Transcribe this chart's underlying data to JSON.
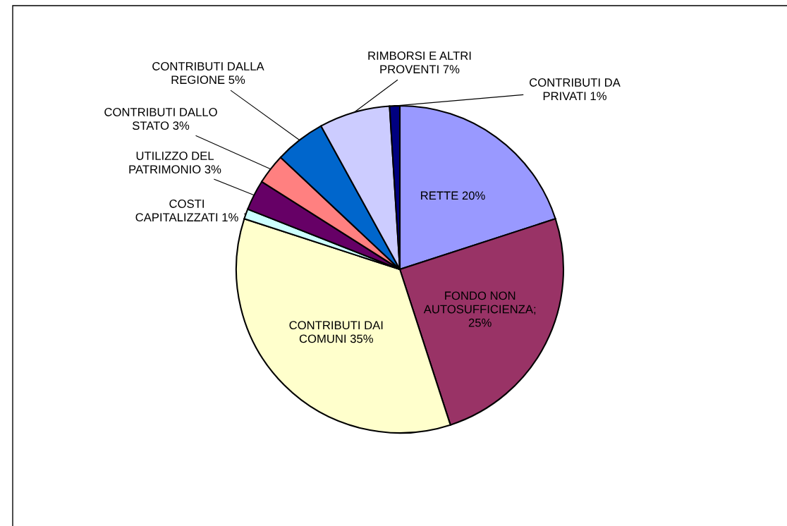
{
  "chart_data": {
    "type": "pie",
    "categories": [
      "RETTE 20%",
      "FONDO NON\nAUTOSUFFICIENZA;\n25%",
      "CONTRIBUTI DAI\nCOMUNI 35%",
      "COSTI\nCAPITALIZZATI 1%",
      "UTILIZZO DEL\nPATRIMONIO 3%",
      "CONTRIBUTI DALLO\nSTATO 3%",
      "CONTRIBUTI DALLA\nREGIONE 5%",
      "RIMBORSI E ALTRI\nPROVENTI 7%",
      "CONTRIBUTI DA\nPRIVATI 1%"
    ],
    "values": [
      20,
      25,
      35,
      1,
      3,
      3,
      5,
      7,
      1
    ],
    "colors": [
      "#9999ff",
      "#993366",
      "#ffffcc",
      "#ccffff",
      "#660066",
      "#ff8080",
      "#0066cc",
      "#ccccff",
      "#000080"
    ],
    "legend": false
  }
}
